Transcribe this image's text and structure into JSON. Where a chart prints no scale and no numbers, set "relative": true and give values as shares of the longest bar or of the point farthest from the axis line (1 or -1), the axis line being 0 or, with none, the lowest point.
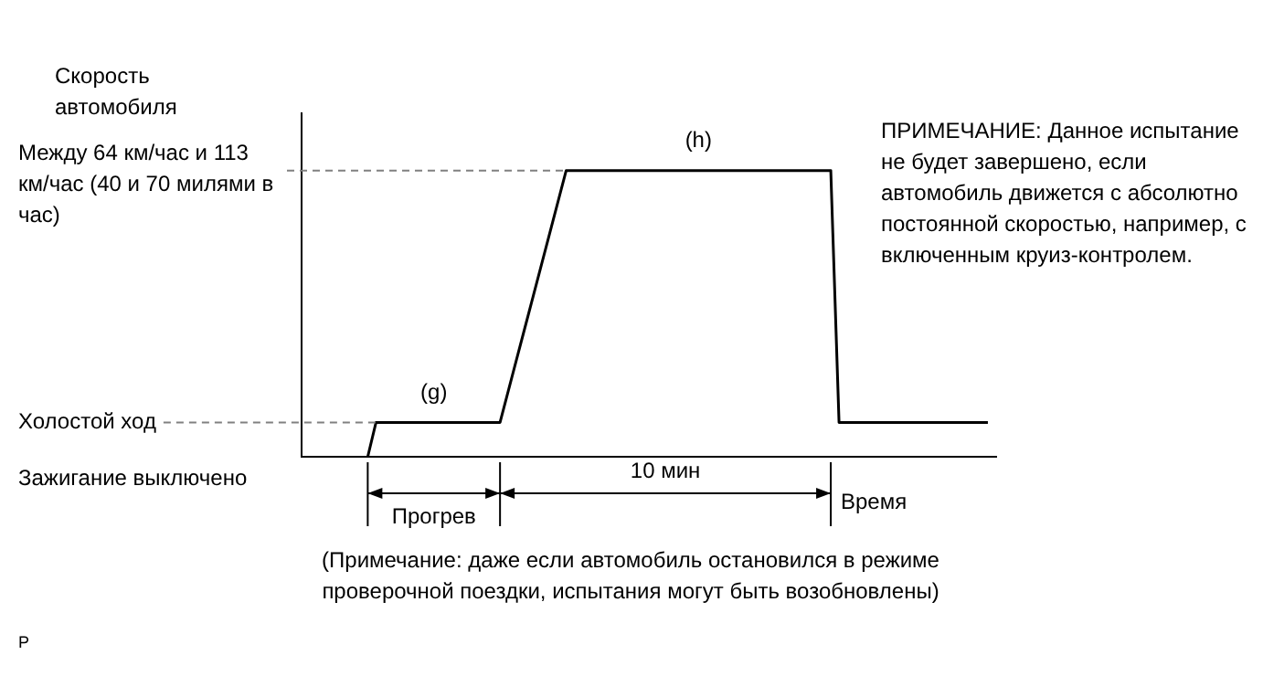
{
  "chart_data": {
    "type": "line",
    "relative": true,
    "xlabel": "Время",
    "categories": [
      null,
      null,
      null,
      null,
      null,
      null,
      null,
      null,
      null,
      null,
      null,
      null,
      null,
      null,
      null,
      null,
      null,
      null,
      null,
      null,
      null,
      null,
      null,
      null,
      null,
      null,
      null,
      null,
      null,
      null,
      null,
      null,
      null,
      null,
      null,
      null,
      null,
      null,
      null,
      null,
      null,
      null,
      null,
      null,
      null,
      null,
      null,
      null,
      null,
      null,
      null,
      null,
      null,
      null,
      null,
      null,
      null,
      null,
      null,
      null,
      null,
      null,
      null,
      null,
      null,
      null,
      null,
      null,
      null,
      null,
      null,
      null,
      null,
      null,
      null,
      null,
      null,
      null,
      null,
      null,
      null,
      null,
      null,
      null,
      null
    ],
    "series": [
      {
        "color": "#000000",
        "values": [
          null,
          null,
          null,
          null,
          null,
          null,
          null,
          null,
          0,
          0.12,
          0.12,
          0.12,
          0.12,
          0.12,
          0.12,
          0.12,
          0.12,
          0.12,
          0.12,
          0.12,
          0.12,
          0.12,
          0.12,
          0.12,
          0.12,
          0.23,
          0.34,
          0.45,
          0.56,
          0.67,
          0.78,
          0.89,
          1,
          1,
          1,
          1,
          1,
          1,
          1,
          1,
          1,
          1,
          1,
          1,
          1,
          1,
          1,
          1,
          1,
          1,
          1,
          1,
          1,
          1,
          1,
          1,
          1,
          1,
          1,
          1,
          1,
          1,
          1,
          1,
          1,
          0.12,
          0.12,
          0.12,
          0.12,
          0.12,
          0.12,
          0.12,
          0.12,
          0.12,
          0.12,
          0.12,
          0.12,
          0.12,
          0.12,
          0.12,
          0.12,
          0.12,
          0.12,
          0.12,
          null
        ]
      }
    ],
    "marker": "none",
    "line_style": "solid",
    "legend": false,
    "ref_lines": [
      {
        "axis": "y",
        "value": 1,
        "label": "Между 64 км/час и 113 км/час (40 и 70 милями в час)",
        "color": "#808080",
        "line_style": "dashed"
      },
      {
        "axis": "y",
        "value": 0.12,
        "label": "Холостой ход",
        "color": "#808080",
        "line_style": "dashed"
      }
    ],
    "annotations": [
      "ПРИМЕЧАНИЕ: Данное испытание не будет завершено, если автомобиль движется с абсолютно постоянной скоростью, например, с включенным круиз-контролем.",
      "(Примечание: даже если автомобиль остановился в режиме проверочной поездки, испытания могут быть возобновлены)",
      "P",
      "(g)",
      "(h)",
      "Прогрев",
      "10 мин",
      "Скорость автомобиля",
      "Зажигание выключено"
    ]
  }
}
